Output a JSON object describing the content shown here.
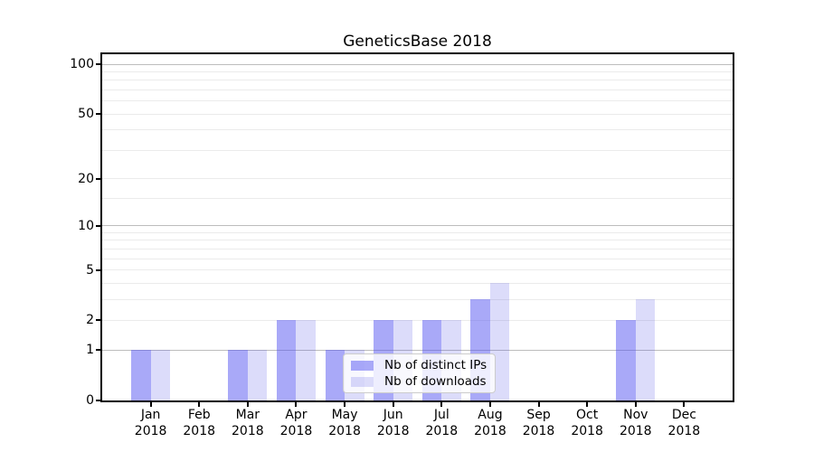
{
  "window": {
    "background": "#ffffff"
  },
  "chart_data": {
    "type": "bar",
    "title": "GeneticsBase 2018",
    "categories": [
      "Jan 2018",
      "Feb 2018",
      "Mar 2018",
      "Apr 2018",
      "May 2018",
      "Jun 2018",
      "Jul 2018",
      "Aug 2018",
      "Sep 2018",
      "Oct 2018",
      "Nov 2018",
      "Dec 2018"
    ],
    "series": [
      {
        "name": "Nb of distinct IPs",
        "color": "rgba(84,84,241,0.5)",
        "values": [
          1,
          0,
          1,
          2,
          1,
          2,
          2,
          3,
          0,
          0,
          2,
          0
        ]
      },
      {
        "name": "Nb of downloads",
        "color": "rgba(80,80,230,0.2)",
        "values": [
          1,
          0,
          1,
          2,
          1,
          2,
          2,
          4,
          0,
          0,
          3,
          0
        ]
      }
    ],
    "xlabel": "",
    "ylabel": "",
    "yscale": "log1p",
    "ylim": [
      0,
      115
    ],
    "yticks": [
      0,
      1,
      2,
      5,
      10,
      20,
      50,
      100
    ],
    "yticks_minor": [
      3,
      4,
      6,
      7,
      8,
      9,
      15,
      30,
      40,
      60,
      70,
      80,
      90
    ],
    "grid": "both",
    "legend_position": "lower center"
  },
  "legend": {
    "items": [
      {
        "label": "Nb of distinct IPs"
      },
      {
        "label": "Nb of downloads"
      }
    ]
  },
  "colors": {
    "grid_major": "#bdbdbd",
    "grid_minor": "#ebebeb",
    "spine": "#000000",
    "bar_ips": "rgba(84,84,241,0.5)",
    "bar_downloads": "rgba(80,80,230,0.2)"
  }
}
